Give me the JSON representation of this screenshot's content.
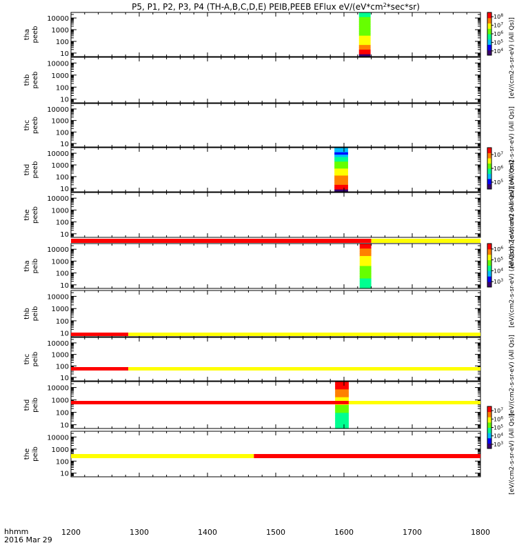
{
  "chart_data": {
    "type": "heatmap",
    "title": "P5, P1, P2, P3, P4 (TH-A,B,C,D,E) PEIB,PEEB EFlux eV/(eV*cm",
    "title_sup": "2",
    "title_tail": "*sec*sr)",
    "x_axis": {
      "range": [
        1200,
        1800
      ],
      "ticks": [
        "1200",
        "1300",
        "1400",
        "1500",
        "1600",
        "1700",
        "1800"
      ],
      "label_line1": "hhmm",
      "label_line2": "2016 Mar 29"
    },
    "y_ticks": [
      "10",
      "100",
      "1000",
      "10000"
    ],
    "y_range": [
      5,
      30000
    ],
    "y_scale": "log",
    "panels": [
      {
        "name_line1": "tha",
        "name_line2": "peeb",
        "spectra": [
          {
            "x_start": 1622,
            "x_end": 1639,
            "profile": "eeb_a"
          }
        ]
      },
      {
        "name_line1": "thb",
        "name_line2": "peeb",
        "spectra": []
      },
      {
        "name_line1": "thc",
        "name_line2": "peeb",
        "spectra": []
      },
      {
        "name_line1": "thd",
        "name_line2": "peeb",
        "spectra": [
          {
            "x_start": 1586,
            "x_end": 1606,
            "profile": "eeb_d"
          }
        ]
      },
      {
        "name_line1": "the",
        "name_line2": "peeb",
        "spectra": []
      },
      {
        "name_line1": "tha",
        "name_line2": "peib",
        "spectra": [
          {
            "x_start": 1623,
            "x_end": 1640,
            "profile": "eib_a"
          }
        ]
      },
      {
        "name_line1": "thb",
        "name_line2": "peib",
        "spectra": []
      },
      {
        "name_line1": "thc",
        "name_line2": "peib",
        "spectra": []
      },
      {
        "name_line1": "thd",
        "name_line2": "peib",
        "spectra": [
          {
            "x_start": 1587,
            "x_end": 1607,
            "profile": "eib_d"
          }
        ]
      },
      {
        "name_line1": "the",
        "name_line2": "peib",
        "spectra": []
      }
    ],
    "status_bars": [
      {
        "segments": [
          {
            "x_start": 1200,
            "x_end": 1640,
            "color": "red"
          },
          {
            "x_start": 1640,
            "x_end": 1800,
            "color": "yellow"
          }
        ]
      },
      {
        "segments": [
          {
            "x_start": 1200,
            "x_end": 1284,
            "color": "red"
          },
          {
            "x_start": 1284,
            "x_end": 1800,
            "color": "yellow"
          }
        ]
      },
      {
        "segments": [
          {
            "x_start": 1200,
            "x_end": 1284,
            "color": "red"
          },
          {
            "x_start": 1284,
            "x_end": 1800,
            "color": "yellow"
          }
        ]
      },
      {
        "segments": [
          {
            "x_start": 1200,
            "x_end": 1607,
            "color": "red"
          },
          {
            "x_start": 1607,
            "x_end": 1800,
            "color": "yellow"
          }
        ]
      },
      {
        "segments": [
          {
            "x_start": 1200,
            "x_end": 1468,
            "color": "yellow"
          },
          {
            "x_start": 1468,
            "x_end": 1800,
            "color": "red"
          }
        ]
      }
    ],
    "colorbars": [
      {
        "ticks": [
          {
            "base": "10",
            "exp": "4"
          },
          {
            "base": "10",
            "exp": "5"
          },
          {
            "base": "10",
            "exp": "6"
          },
          {
            "base": "10",
            "exp": "7"
          },
          {
            "base": "10",
            "exp": "8"
          }
        ]
      },
      {
        "ticks": [
          {
            "base": "10",
            "exp": "5"
          },
          {
            "base": "10",
            "exp": "6"
          },
          {
            "base": "10",
            "exp": "7"
          }
        ]
      },
      {
        "ticks": [
          {
            "base": "10",
            "exp": "3"
          },
          {
            "base": "10",
            "exp": "4"
          },
          {
            "base": "10",
            "exp": "5"
          },
          {
            "base": "10",
            "exp": "6"
          }
        ]
      },
      {
        "ticks": [
          {
            "base": "10",
            "exp": "3"
          },
          {
            "base": "10",
            "exp": "4"
          },
          {
            "base": "10",
            "exp": "5"
          },
          {
            "base": "10",
            "exp": "6"
          },
          {
            "base": "10",
            "exp": "7"
          }
        ]
      }
    ],
    "colorbar_units": [
      "eV/(cm2-s-sr-eV) (All Qs)",
      "eV/(cm2-s-sr-eV) (All Qs)",
      "eV/(cm2-s-sr-eV) (All Qs)",
      "eV/(cm2-s-sr-eV) (All Qs)",
      "eV/(cm2-s-sr-eV) (All Qs)",
      "eV/(cm2-s-sr-eV) (All Qs)",
      "eV/(cm2-s-sr-eV) (All Qs)"
    ],
    "colors": {
      "red": "#ff0000",
      "yellow": "#ffff00",
      "colormap": [
        "#3a0070",
        "#0000ff",
        "#00bfff",
        "#00ff90",
        "#66ff00",
        "#ffff00",
        "#ff8000",
        "#ff0000"
      ]
    },
    "profiles": {
      "eeb_a": [
        3,
        3,
        4,
        4,
        4,
        4,
        4,
        4,
        4,
        4,
        5,
        5,
        5,
        5,
        6,
        6,
        7,
        7,
        0
      ],
      "eeb_d": [
        2,
        2,
        1,
        2,
        3,
        3,
        4,
        4,
        4,
        5,
        5,
        5,
        6,
        6,
        6,
        6,
        7,
        7,
        0
      ],
      "eib_a": [
        7,
        7,
        6,
        6,
        6,
        5,
        5,
        5,
        5,
        4,
        4,
        4,
        4,
        4,
        3,
        3,
        3,
        3
      ],
      "eib_d": [
        7,
        7,
        7,
        6,
        6,
        6,
        5,
        5,
        5,
        4,
        4,
        4,
        3,
        3,
        3,
        3,
        3,
        3
      ]
    }
  }
}
